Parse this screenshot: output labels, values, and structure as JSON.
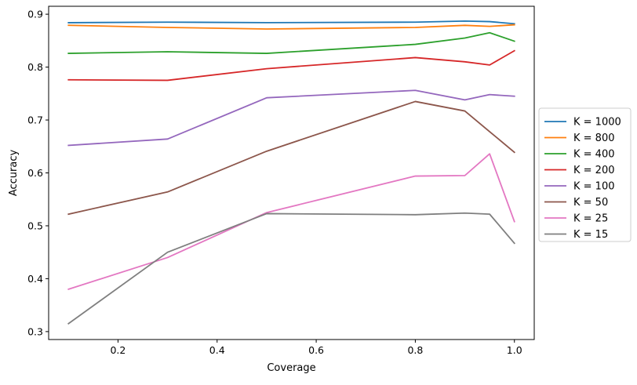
{
  "chart_data": {
    "type": "line",
    "title": "",
    "xlabel": "Coverage",
    "ylabel": "Accuracy",
    "xlim": [
      0.06,
      1.04
    ],
    "ylim": [
      0.285,
      0.915
    ],
    "xticks": [
      0.2,
      0.4,
      0.6,
      0.8,
      1.0
    ],
    "xtick_labels": [
      "0.2",
      "0.4",
      "0.6",
      "0.8",
      "1.0"
    ],
    "yticks": [
      0.3,
      0.4,
      0.5,
      0.6,
      0.7,
      0.8,
      0.9
    ],
    "ytick_labels": [
      "0.3",
      "0.4",
      "0.5",
      "0.6",
      "0.7",
      "0.8",
      "0.9"
    ],
    "grid": false,
    "legend_position": "center-right-outside",
    "x": [
      0.1,
      0.3,
      0.5,
      0.8,
      0.9,
      0.95,
      1.0
    ],
    "series": [
      {
        "name": "K = 1000",
        "color": "#1f77b4",
        "values": [
          0.884,
          0.885,
          0.884,
          0.885,
          0.887,
          0.886,
          0.882
        ]
      },
      {
        "name": "K = 800",
        "color": "#ff7f0e",
        "values": [
          0.879,
          0.875,
          0.872,
          0.875,
          0.879,
          0.877,
          0.88
        ]
      },
      {
        "name": "K = 400",
        "color": "#2ca02c",
        "values": [
          0.826,
          0.829,
          0.826,
          0.843,
          0.855,
          0.865,
          0.849
        ]
      },
      {
        "name": "K = 200",
        "color": "#d62728",
        "values": [
          0.776,
          0.775,
          0.797,
          0.818,
          0.81,
          0.804,
          0.831
        ]
      },
      {
        "name": "K = 100",
        "color": "#9467bd",
        "values": [
          0.652,
          0.664,
          0.742,
          0.756,
          0.738,
          0.748,
          0.745
        ]
      },
      {
        "name": "K = 50",
        "color": "#8c564b",
        "values": [
          0.522,
          0.564,
          0.641,
          0.735,
          0.717,
          0.678,
          0.639
        ]
      },
      {
        "name": "K = 25",
        "color": "#e377c2",
        "values": [
          0.38,
          0.44,
          0.525,
          0.594,
          0.595,
          0.636,
          0.508
        ]
      },
      {
        "name": "K = 15",
        "color": "#7f7f7f",
        "values": [
          0.315,
          0.45,
          0.523,
          0.521,
          0.524,
          0.522,
          0.467
        ]
      }
    ]
  }
}
